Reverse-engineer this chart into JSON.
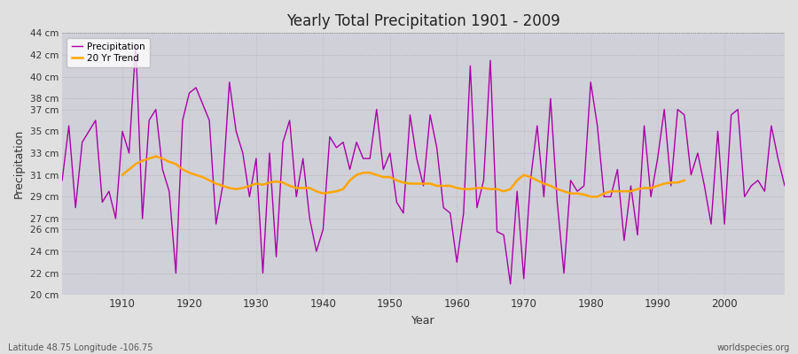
{
  "title": "Yearly Total Precipitation 1901 - 2009",
  "xlabel": "Year",
  "ylabel": "Precipitation",
  "subtitle_left": "Latitude 48.75 Longitude -106.75",
  "subtitle_right": "worldspecies.org",
  "precip_color": "#aa00aa",
  "trend_color": "#FFA500",
  "fig_bg_color": "#e0e0e0",
  "plot_bg_color": "#d0d0d8",
  "ylim": [
    20,
    44
  ],
  "xlim": [
    1901,
    2009
  ],
  "ytick_vals": [
    20,
    22,
    24,
    26,
    27,
    29,
    31,
    33,
    35,
    37,
    38,
    40,
    42,
    44
  ],
  "xtick_vals": [
    1910,
    1920,
    1930,
    1940,
    1950,
    1960,
    1970,
    1980,
    1990,
    2000
  ],
  "years": [
    1901,
    1902,
    1903,
    1904,
    1905,
    1906,
    1907,
    1908,
    1909,
    1910,
    1911,
    1912,
    1913,
    1914,
    1915,
    1916,
    1917,
    1918,
    1919,
    1920,
    1921,
    1922,
    1923,
    1924,
    1925,
    1926,
    1927,
    1928,
    1929,
    1930,
    1931,
    1932,
    1933,
    1934,
    1935,
    1936,
    1937,
    1938,
    1939,
    1940,
    1941,
    1942,
    1943,
    1944,
    1945,
    1946,
    1947,
    1948,
    1949,
    1950,
    1951,
    1952,
    1953,
    1954,
    1955,
    1956,
    1957,
    1958,
    1959,
    1960,
    1961,
    1962,
    1963,
    1964,
    1965,
    1966,
    1967,
    1968,
    1969,
    1970,
    1971,
    1972,
    1973,
    1974,
    1975,
    1976,
    1977,
    1978,
    1979,
    1980,
    1981,
    1982,
    1983,
    1984,
    1985,
    1986,
    1987,
    1988,
    1989,
    1990,
    1991,
    1992,
    1993,
    1994,
    1995,
    1996,
    1997,
    1998,
    1999,
    2000,
    2001,
    2002,
    2003,
    2004,
    2005,
    2006,
    2007,
    2008,
    2009
  ],
  "precip": [
    30.5,
    35.5,
    28.0,
    34.0,
    35.0,
    36.0,
    28.5,
    29.5,
    27.0,
    35.0,
    33.0,
    43.0,
    27.0,
    36.0,
    37.0,
    31.5,
    29.5,
    22.0,
    36.0,
    38.5,
    39.0,
    37.5,
    36.0,
    26.5,
    30.0,
    39.5,
    35.0,
    33.0,
    29.0,
    32.5,
    22.0,
    33.0,
    23.5,
    34.0,
    36.0,
    29.0,
    32.5,
    27.0,
    24.0,
    26.0,
    34.5,
    33.5,
    34.0,
    31.5,
    34.0,
    32.5,
    32.5,
    37.0,
    31.5,
    33.0,
    28.5,
    27.5,
    36.5,
    32.5,
    30.0,
    36.5,
    33.5,
    28.0,
    27.5,
    23.0,
    27.5,
    41.0,
    28.0,
    30.5,
    41.5,
    25.8,
    25.5,
    21.0,
    29.5,
    21.5,
    30.5,
    35.5,
    29.0,
    38.0,
    28.5,
    22.0,
    30.5,
    29.5,
    30.0,
    39.5,
    35.5,
    29.0,
    29.0,
    31.5,
    25.0,
    30.0,
    25.5,
    35.5,
    29.0,
    32.5,
    37.0,
    30.0,
    37.0,
    36.5,
    31.0,
    33.0,
    30.0,
    26.5,
    35.0,
    26.5,
    36.5,
    37.0,
    29.0,
    30.0,
    30.5,
    29.5,
    35.5,
    32.5,
    30.0
  ],
  "trend": [
    null,
    null,
    null,
    null,
    null,
    null,
    null,
    null,
    null,
    31.0,
    31.5,
    32.0,
    32.3,
    32.5,
    32.7,
    32.5,
    32.2,
    32.0,
    31.5,
    31.2,
    31.0,
    30.8,
    30.5,
    30.2,
    30.0,
    29.8,
    29.7,
    29.8,
    30.0,
    30.2,
    30.1,
    30.3,
    30.4,
    30.3,
    30.0,
    29.8,
    29.8,
    29.8,
    29.5,
    29.3,
    29.4,
    29.5,
    29.7,
    30.5,
    31.0,
    31.2,
    31.2,
    31.0,
    30.8,
    30.8,
    30.5,
    30.3,
    30.2,
    30.2,
    30.2,
    30.2,
    30.0,
    30.0,
    30.0,
    29.8,
    29.7,
    29.7,
    29.8,
    29.8,
    29.7,
    29.7,
    29.5,
    29.7,
    30.5,
    31.0,
    30.8,
    30.5,
    30.2,
    30.0,
    29.7,
    29.5,
    29.3,
    29.3,
    29.2,
    29.0,
    29.0,
    29.3,
    29.5,
    29.5,
    29.5,
    29.5,
    29.7,
    29.8,
    29.8,
    30.0,
    30.2,
    30.3,
    30.3,
    30.5,
    null,
    null,
    null,
    null,
    null,
    null,
    null,
    null,
    null
  ]
}
